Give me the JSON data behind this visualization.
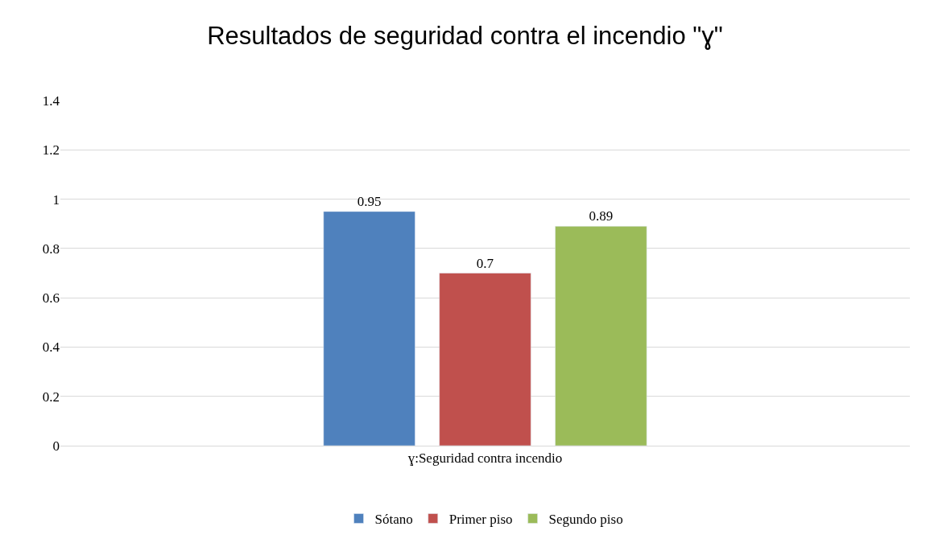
{
  "chart_data": {
    "type": "bar",
    "title": "Resultados de seguridad contra el incendio \"ɣ\"",
    "categories": [
      "ɣ:Seguridad contra incendio"
    ],
    "series": [
      {
        "name": "Sótano",
        "color": "#4f81bd",
        "values": [
          0.95
        ]
      },
      {
        "name": "Primer piso",
        "color": "#c0504d",
        "values": [
          0.7
        ]
      },
      {
        "name": "Segundo piso",
        "color": "#9bbb59",
        "values": [
          0.89
        ]
      }
    ],
    "ylim": [
      0,
      1.4
    ],
    "yticks": [
      0,
      0.2,
      0.4,
      0.6,
      0.8,
      1,
      1.2,
      1.4
    ],
    "grid": "y",
    "legend": "bottom",
    "data_labels": true
  }
}
